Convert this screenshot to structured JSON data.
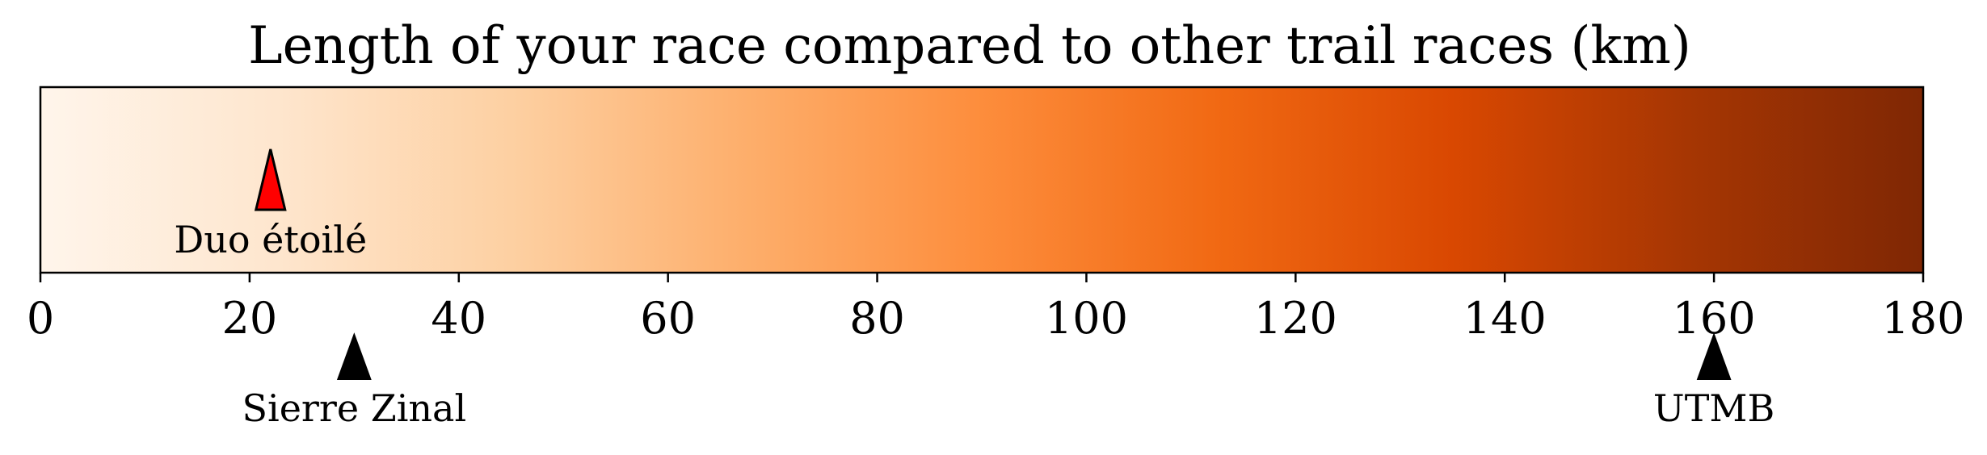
{
  "chart_data": {
    "type": "colorbar",
    "title": "Length of your race compared to other trail races (km)",
    "xlim": [
      0,
      180
    ],
    "ticks": [
      0,
      20,
      40,
      60,
      80,
      100,
      120,
      140,
      160,
      180
    ],
    "tick_labels": [
      "0",
      "20",
      "40",
      "60",
      "80",
      "100",
      "120",
      "140",
      "160",
      "180"
    ],
    "colormap": {
      "name": "Oranges",
      "stops": [
        "#fff5eb",
        "#fee6ce",
        "#fdd0a2",
        "#fdae6b",
        "#fd8d3c",
        "#f16913",
        "#d94801",
        "#a63603",
        "#7f2704"
      ]
    },
    "markers": [
      {
        "label": "Duo étoilé",
        "value": 22,
        "color": "#ff0000",
        "position": "inside"
      },
      {
        "label": "Sierre Zinal",
        "value": 30,
        "color": "#000000",
        "position": "below"
      },
      {
        "label": "UTMB",
        "value": 160,
        "color": "#000000",
        "position": "below"
      }
    ]
  }
}
